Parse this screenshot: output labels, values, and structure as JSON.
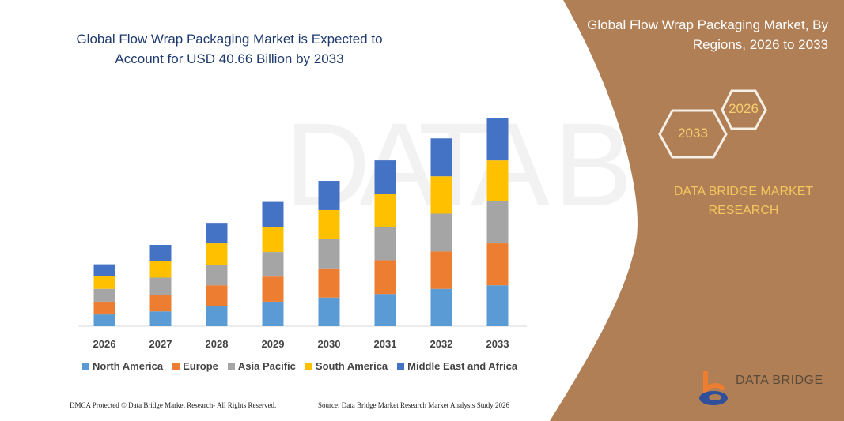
{
  "header": {
    "title": "Global Flow Wrap Packaging Market is Expected to Account for USD 40.66 Billion by 2033"
  },
  "side_panel": {
    "title": "Global Flow Wrap Packaging Market, By Regions, 2026 to 2033",
    "hex_start": "2026",
    "hex_end": "2033",
    "brand": "DATA BRIDGE MARKET RESEARCH",
    "logo_text": "DATA BRIDGE",
    "background_color": "#b07f55"
  },
  "chart_data": {
    "type": "bar",
    "stacked": true,
    "title": "Global Flow Wrap Packaging Market is Expected to Account for USD 40.66 Billion by 2033",
    "xlabel": "",
    "ylabel": "",
    "grid": false,
    "legend_position": "bottom",
    "categories": [
      "2026",
      "2027",
      "2028",
      "2029",
      "2030",
      "2031",
      "2032",
      "2033"
    ],
    "series": [
      {
        "name": "North America",
        "color": "#5b9bd5",
        "values": [
          2.3,
          2.9,
          4.0,
          4.8,
          5.6,
          6.3,
          7.3,
          8.0
        ]
      },
      {
        "name": "Europe",
        "color": "#ed7d31",
        "values": [
          2.5,
          3.2,
          4.0,
          4.9,
          5.7,
          6.6,
          7.3,
          8.2
        ]
      },
      {
        "name": "Asia Pacific",
        "color": "#a5a5a5",
        "values": [
          2.5,
          3.4,
          4.0,
          4.8,
          5.7,
          6.5,
          7.4,
          8.2
        ]
      },
      {
        "name": "South America",
        "color": "#ffc000",
        "values": [
          2.5,
          3.2,
          4.2,
          4.9,
          5.7,
          6.5,
          7.3,
          8.0
        ]
      },
      {
        "name": "Middle East and Africa",
        "color": "#4472c4",
        "values": [
          2.3,
          3.2,
          4.0,
          4.9,
          5.7,
          6.5,
          7.4,
          8.2
        ]
      }
    ]
  },
  "footer": {
    "left": "DMCA Protected © Data Bridge Market Research- All Rights Reserved.",
    "right": "Source: Data Bridge Market Research Market Analysis Study 2026"
  }
}
